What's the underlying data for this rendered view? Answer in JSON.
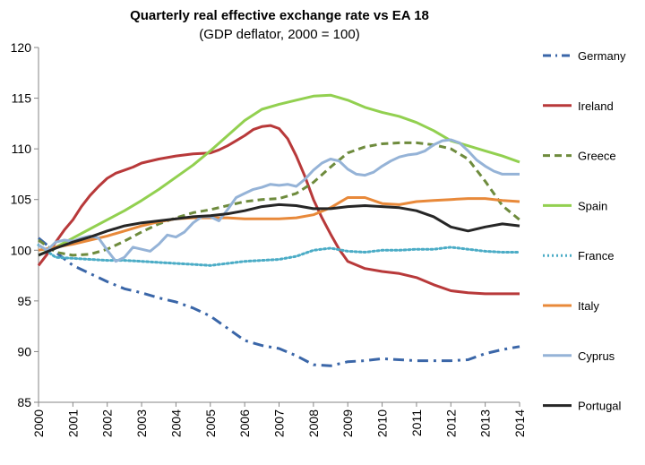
{
  "chart_data": {
    "type": "line",
    "title": "Quarterly real effective exchange rate vs EA 18",
    "subtitle": "(GDP deflator, 2000 = 100)",
    "xlabel": "",
    "ylabel": "",
    "xlim": [
      2000,
      2014
    ],
    "ylim": [
      85,
      120
    ],
    "y_ticks": [
      85,
      90,
      95,
      100,
      105,
      110,
      115,
      120
    ],
    "x_ticks": [
      "2000",
      "2001",
      "2002",
      "2003",
      "2004",
      "2005",
      "2006",
      "2007",
      "2008",
      "2009",
      "2010",
      "2011",
      "2012",
      "2013",
      "2014"
    ],
    "grid": false,
    "legend_position": "right",
    "series": [
      {
        "name": "Germany",
        "color": "#3a66a8",
        "dash": "dashdot",
        "x": [
          2000,
          2000.5,
          2001,
          2001.5,
          2002,
          2002.5,
          2003,
          2003.5,
          2004,
          2004.5,
          2005,
          2005.5,
          2006,
          2006.5,
          2007,
          2007.5,
          2008,
          2008.5,
          2009,
          2009.5,
          2010,
          2010.5,
          2011,
          2011.5,
          2012,
          2012.5,
          2013,
          2013.5,
          2014
        ],
        "values": [
          101.2,
          99.8,
          98.5,
          97.7,
          96.9,
          96.2,
          95.8,
          95.3,
          94.9,
          94.3,
          93.5,
          92.3,
          91.1,
          90.6,
          90.3,
          89.6,
          88.7,
          88.6,
          89.0,
          89.1,
          89.3,
          89.2,
          89.1,
          89.1,
          89.1,
          89.2,
          89.8,
          90.2,
          90.5
        ]
      },
      {
        "name": "Ireland",
        "color": "#b8393a",
        "dash": "solid",
        "x": [
          2000,
          2000.25,
          2000.5,
          2000.75,
          2001,
          2001.25,
          2001.5,
          2001.75,
          2002,
          2002.25,
          2002.5,
          2002.75,
          2003,
          2003.5,
          2004,
          2004.5,
          2005,
          2005.25,
          2005.5,
          2005.75,
          2006,
          2006.25,
          2006.5,
          2006.75,
          2007,
          2007.25,
          2007.5,
          2007.75,
          2008,
          2008.25,
          2008.5,
          2008.75,
          2009,
          2009.5,
          2010,
          2010.5,
          2011,
          2011.5,
          2012,
          2012.5,
          2013,
          2013.5,
          2014
        ],
        "values": [
          98.5,
          99.6,
          100.8,
          102.0,
          103.0,
          104.3,
          105.4,
          106.3,
          107.1,
          107.6,
          107.9,
          108.2,
          108.6,
          109.0,
          109.3,
          109.5,
          109.6,
          109.9,
          110.3,
          110.8,
          111.3,
          111.9,
          112.2,
          112.3,
          112.0,
          111.0,
          109.3,
          107.3,
          105.0,
          103.2,
          101.6,
          100.1,
          98.9,
          98.2,
          97.9,
          97.7,
          97.3,
          96.6,
          96.0,
          95.8,
          95.7,
          95.7,
          95.7
        ]
      },
      {
        "name": "Greece",
        "color": "#6e8b3d",
        "dash": "dashed",
        "x": [
          2000,
          2000.5,
          2001,
          2001.5,
          2002,
          2002.5,
          2003,
          2003.5,
          2004,
          2004.5,
          2005,
          2005.5,
          2006,
          2006.5,
          2007,
          2007.5,
          2008,
          2008.5,
          2009,
          2009.5,
          2010,
          2010.5,
          2011,
          2011.5,
          2012,
          2012.5,
          2013,
          2013.5,
          2014
        ],
        "values": [
          101.0,
          99.8,
          99.5,
          99.6,
          100.1,
          100.9,
          101.8,
          102.6,
          103.2,
          103.7,
          104.0,
          104.4,
          104.8,
          105.0,
          105.1,
          105.6,
          106.7,
          108.2,
          109.6,
          110.2,
          110.5,
          110.6,
          110.6,
          110.4,
          110.0,
          109.0,
          106.8,
          104.4,
          103.0
        ]
      },
      {
        "name": "Spain",
        "color": "#92d050",
        "dash": "solid",
        "x": [
          2000,
          2000.5,
          2001,
          2001.5,
          2002,
          2002.5,
          2003,
          2003.5,
          2004,
          2004.5,
          2005,
          2005.5,
          2006,
          2006.5,
          2007,
          2007.5,
          2008,
          2008.5,
          2009,
          2009.5,
          2010,
          2010.5,
          2011,
          2011.5,
          2012,
          2012.5,
          2013,
          2013.5,
          2014
        ],
        "values": [
          99.5,
          100.3,
          101.2,
          102.1,
          103.0,
          103.9,
          104.9,
          106.0,
          107.2,
          108.4,
          109.8,
          111.3,
          112.8,
          113.9,
          114.4,
          114.8,
          115.2,
          115.3,
          114.8,
          114.1,
          113.6,
          113.2,
          112.6,
          111.8,
          110.8,
          110.3,
          109.8,
          109.3,
          108.7
        ]
      },
      {
        "name": "France",
        "color": "#4bacc6",
        "dash": "dotted",
        "x": [
          2000,
          2000.5,
          2001,
          2001.5,
          2002,
          2002.5,
          2003,
          2003.5,
          2004,
          2004.5,
          2005,
          2005.5,
          2006,
          2006.5,
          2007,
          2007.5,
          2008,
          2008.5,
          2009,
          2009.5,
          2010,
          2010.5,
          2011,
          2011.5,
          2012,
          2012.5,
          2013,
          2013.5,
          2014
        ],
        "values": [
          100.5,
          99.3,
          99.2,
          99.1,
          99.0,
          99.0,
          98.9,
          98.8,
          98.7,
          98.6,
          98.5,
          98.7,
          98.9,
          99.0,
          99.1,
          99.4,
          100.0,
          100.2,
          99.9,
          99.8,
          100.0,
          100.0,
          100.1,
          100.1,
          100.3,
          100.1,
          99.9,
          99.8,
          99.8
        ]
      },
      {
        "name": "Italy",
        "color": "#e8893a",
        "dash": "solid",
        "x": [
          2000,
          2000.5,
          2001,
          2001.5,
          2002,
          2002.5,
          2003,
          2003.5,
          2004,
          2004.5,
          2005,
          2005.5,
          2006,
          2006.5,
          2007,
          2007.5,
          2008,
          2008.5,
          2009,
          2009.5,
          2010,
          2010.5,
          2011,
          2011.5,
          2012,
          2012.5,
          2013,
          2013.5,
          2014
        ],
        "values": [
          100.0,
          100.3,
          100.6,
          101.0,
          101.4,
          101.9,
          102.4,
          102.8,
          103.1,
          103.2,
          103.2,
          103.2,
          103.1,
          103.1,
          103.1,
          103.2,
          103.5,
          104.2,
          105.2,
          105.2,
          104.6,
          104.5,
          104.8,
          104.9,
          105.0,
          105.1,
          105.1,
          104.9,
          104.8
        ]
      },
      {
        "name": "Cyprus",
        "color": "#95b3d7",
        "dash": "solid",
        "x": [
          2000,
          2000.25,
          2000.5,
          2000.75,
          2001,
          2001.25,
          2001.5,
          2001.75,
          2002,
          2002.25,
          2002.5,
          2002.75,
          2003,
          2003.25,
          2003.5,
          2003.75,
          2004,
          2004.25,
          2004.5,
          2004.75,
          2005,
          2005.25,
          2005.5,
          2005.75,
          2006,
          2006.25,
          2006.5,
          2006.75,
          2007,
          2007.25,
          2007.5,
          2007.75,
          2008,
          2008.25,
          2008.5,
          2008.75,
          2009,
          2009.25,
          2009.5,
          2009.75,
          2010,
          2010.25,
          2010.5,
          2010.75,
          2011,
          2011.25,
          2011.5,
          2011.75,
          2012,
          2012.25,
          2012.5,
          2012.75,
          2013,
          2013.25,
          2013.5,
          2013.75,
          2014
        ],
        "values": [
          100.5,
          100.0,
          100.8,
          101.0,
          100.9,
          101.2,
          101.4,
          101.2,
          100.0,
          98.9,
          99.3,
          100.3,
          100.1,
          99.9,
          100.6,
          101.5,
          101.3,
          101.8,
          102.7,
          103.3,
          103.3,
          102.9,
          104.0,
          105.2,
          105.6,
          106.0,
          106.2,
          106.5,
          106.4,
          106.5,
          106.3,
          107.0,
          107.9,
          108.6,
          109.0,
          108.8,
          108.0,
          107.5,
          107.4,
          107.7,
          108.3,
          108.8,
          109.2,
          109.4,
          109.5,
          109.8,
          110.4,
          110.8,
          110.9,
          110.6,
          109.8,
          108.9,
          108.3,
          107.8,
          107.5,
          107.5,
          107.5
        ]
      },
      {
        "name": "Portugal",
        "color": "#262626",
        "dash": "solid",
        "x": [
          2000,
          2000.5,
          2001,
          2001.5,
          2002,
          2002.5,
          2003,
          2003.5,
          2004,
          2004.5,
          2005,
          2005.5,
          2006,
          2006.5,
          2007,
          2007.5,
          2008,
          2008.5,
          2009,
          2009.5,
          2010,
          2010.5,
          2011,
          2011.5,
          2012,
          2012.5,
          2013,
          2013.5,
          2014
        ],
        "values": [
          99.5,
          100.2,
          100.8,
          101.3,
          101.9,
          102.4,
          102.7,
          102.9,
          103.1,
          103.3,
          103.4,
          103.6,
          103.9,
          104.3,
          104.5,
          104.4,
          104.1,
          104.1,
          104.3,
          104.4,
          104.3,
          104.2,
          103.9,
          103.3,
          102.3,
          101.9,
          102.3,
          102.6,
          102.4
        ]
      }
    ]
  }
}
